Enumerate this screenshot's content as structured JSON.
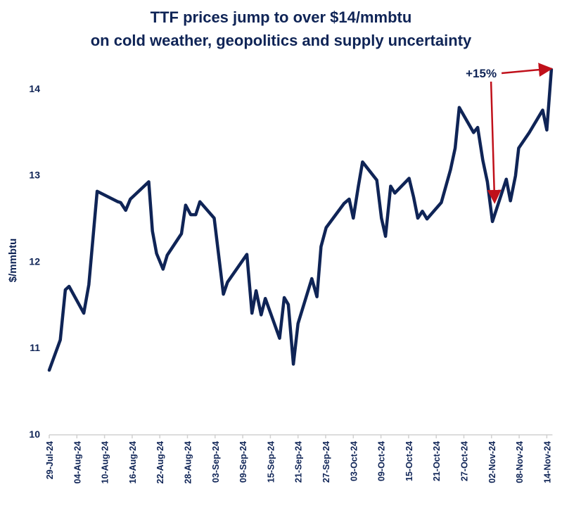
{
  "chart_data": {
    "type": "line",
    "title": [
      "TTF prices jump to over $14/mmbtu",
      "on cold weather, geopolitics and supply uncertainty"
    ],
    "xlabel": "",
    "ylabel": "$/mmbtu",
    "ylim": [
      10,
      14.3
    ],
    "yticks": [
      10,
      11,
      12,
      13,
      14
    ],
    "xlim": [
      "2024-07-29",
      "2024-11-14"
    ],
    "xtick_labels": [
      "29-Jul-24",
      "04-Aug-24",
      "10-Aug-24",
      "16-Aug-24",
      "22-Aug-24",
      "28-Aug-24",
      "03-Sep-24",
      "09-Sep-24",
      "15-Sep-24",
      "21-Sep-24",
      "27-Sep-24",
      "03-Oct-24",
      "09-Oct-24",
      "15-Oct-24",
      "21-Oct-24",
      "27-Oct-24",
      "02-Nov-24",
      "08-Nov-24",
      "14-Nov-24"
    ],
    "xtick_interval_days": 6,
    "grid": false,
    "legend": null,
    "series": [
      {
        "name": "TTF",
        "color": "#0f2456",
        "day_offsets": [
          0,
          2.4,
          3.5,
          4.3,
          7.5,
          8.6,
          10.4,
          14.9,
          15.5,
          16.6,
          17.6,
          21.6,
          22.4,
          23.3,
          24.7,
          25.6,
          28.7,
          29.6,
          30.7,
          31.8,
          32.7,
          35.8,
          37.8,
          38.7,
          42.9,
          44,
          44.9,
          46,
          46.9,
          50,
          51,
          51.9,
          53,
          54,
          57,
          58.1,
          59,
          60.1,
          64,
          65.1,
          66,
          67.1,
          68,
          71.1,
          72.1,
          73,
          74.1,
          75,
          78.1,
          79.1,
          80,
          81,
          82,
          85.1,
          87.1,
          88.1,
          89,
          92.1,
          93,
          94.1,
          95.1,
          96.2,
          99.2,
          100.1,
          101.2,
          101.9,
          104.2,
          107.1,
          108,
          109
        ],
        "values": [
          10.74,
          11.09,
          11.67,
          11.71,
          11.4,
          11.73,
          12.81,
          12.69,
          12.68,
          12.59,
          12.72,
          12.92,
          12.35,
          12.09,
          11.91,
          12.07,
          12.32,
          12.65,
          12.54,
          12.54,
          12.69,
          12.5,
          11.62,
          11.76,
          12.08,
          11.4,
          11.66,
          11.38,
          11.57,
          11.11,
          11.58,
          11.5,
          10.81,
          11.28,
          11.8,
          11.59,
          12.17,
          12.39,
          12.67,
          12.72,
          12.5,
          12.87,
          13.15,
          12.94,
          12.5,
          12.29,
          12.87,
          12.79,
          12.96,
          12.74,
          12.5,
          12.58,
          12.49,
          12.68,
          13.06,
          13.31,
          13.78,
          13.49,
          13.55,
          13.17,
          12.92,
          12.46,
          12.95,
          12.7,
          12.99,
          13.31,
          13.49,
          13.75,
          13.52,
          14.22
        ]
      }
    ],
    "annotations": [
      {
        "text": "+15%",
        "color": "#c0101a",
        "description": "arrow from label down to 02-Nov low and arrow across to 14-Nov high"
      }
    ]
  }
}
